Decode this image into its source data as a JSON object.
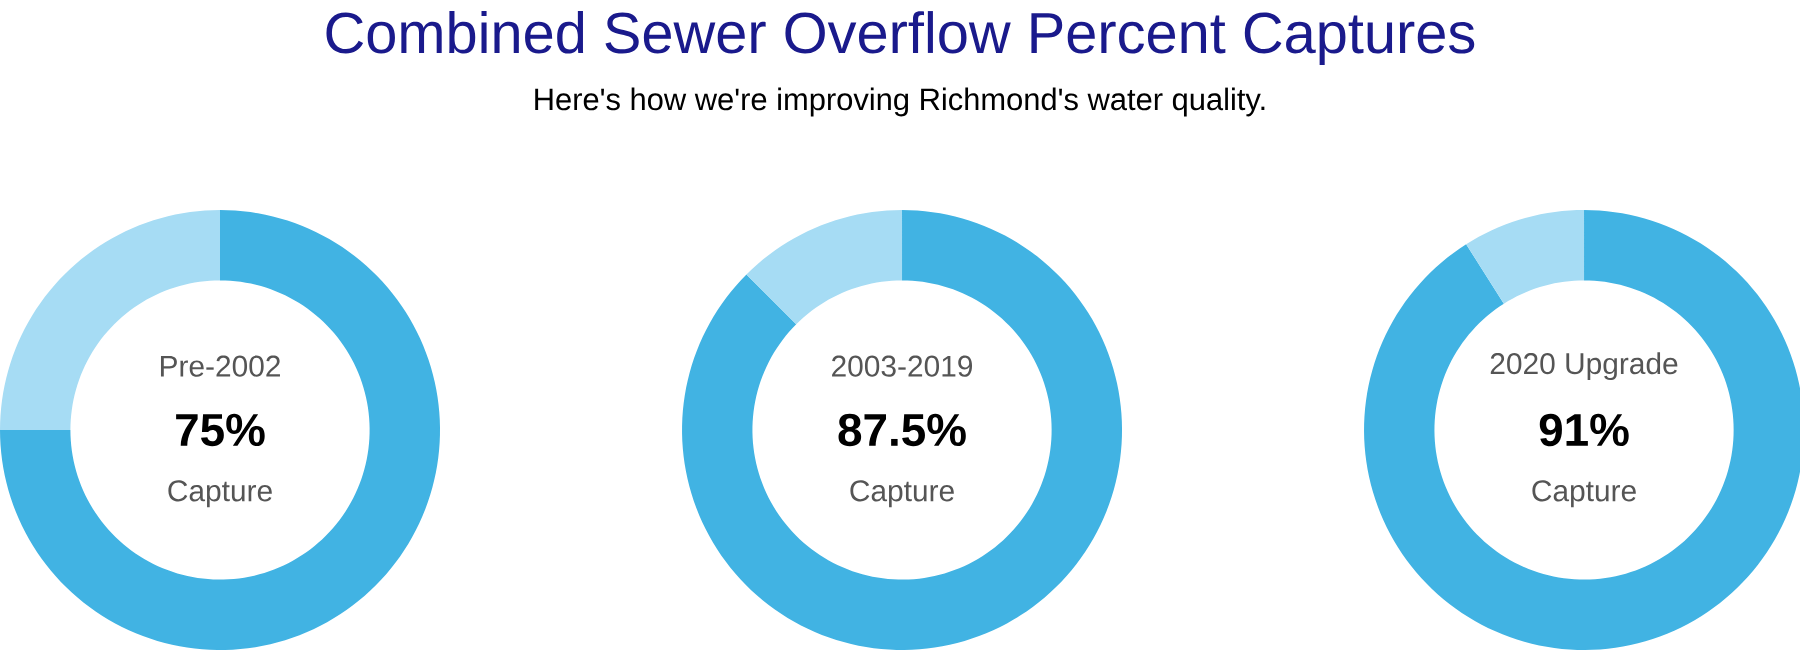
{
  "chart_data": [
    {
      "type": "donut",
      "annotations": [
        "Pre-2002",
        "Capture"
      ],
      "categories": [
        null,
        null
      ],
      "values": [
        75,
        25
      ],
      "value_labels": [
        "75%",
        null
      ],
      "colors": [
        "#41b3e3",
        "#a6dcf4"
      ]
    },
    {
      "type": "donut",
      "title": "Combined Sewer Overflow Percent Captures",
      "subtitle": "Here's how we're improving Richmond's water quality.",
      "annotations": [
        "2003-2019",
        "Capture"
      ],
      "categories": [
        null,
        null
      ],
      "values": [
        87.5,
        12.5
      ],
      "value_labels": [
        "87.5%",
        null
      ],
      "colors": [
        "#41b3e3",
        "#a6dcf4"
      ]
    },
    {
      "type": "donut",
      "annotations": [
        "2020 Upgrade",
        "Capture"
      ],
      "categories": [
        null,
        null
      ],
      "values": [
        91,
        9
      ],
      "value_labels": [
        "91%",
        null
      ],
      "colors": [
        "#41b3e3",
        "#a6dcf4"
      ]
    }
  ]
}
